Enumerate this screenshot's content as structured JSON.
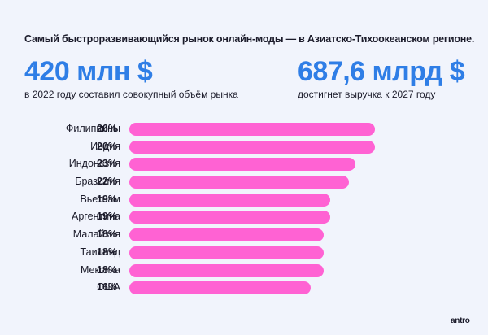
{
  "header": {
    "title": "Самый быстроразвивающийся рынок онлайн-моды — в Азиатско-Тихоокеанском регионе."
  },
  "stats": [
    {
      "value": "420 млн $",
      "caption": "в 2022 году составил совокупный объём рынка"
    },
    {
      "value": "687,6 млрд $",
      "caption": "достигнет выручка к 2027 году"
    }
  ],
  "colors": {
    "accent": "#2f7ee6",
    "bar": "#ff62d3",
    "background": "#f1f4fc",
    "text": "#1b1b2a"
  },
  "logo": "antro",
  "chart_data": {
    "type": "bar",
    "orientation": "horizontal",
    "title": "Самый быстроразвивающийся рынок онлайн-моды — в Азиатско-Тихоокеанском регионе.",
    "categories": [
      "Филиппины",
      "Индия",
      "Индонезия",
      "Бразилия",
      "Вьетнам",
      "Аргентина",
      "Малайзия",
      "Таиланд",
      "Мексика",
      "США"
    ],
    "values": [
      26,
      26,
      23,
      22,
      19,
      19,
      18,
      18,
      18,
      16
    ],
    "labels": [
      "26%",
      "26%",
      "23%",
      "22%",
      "19%",
      "19%",
      "18%",
      "18%",
      "18%",
      "16%"
    ],
    "unit": "%",
    "xlabel": "",
    "ylabel": "",
    "grid": false,
    "legend": null
  }
}
